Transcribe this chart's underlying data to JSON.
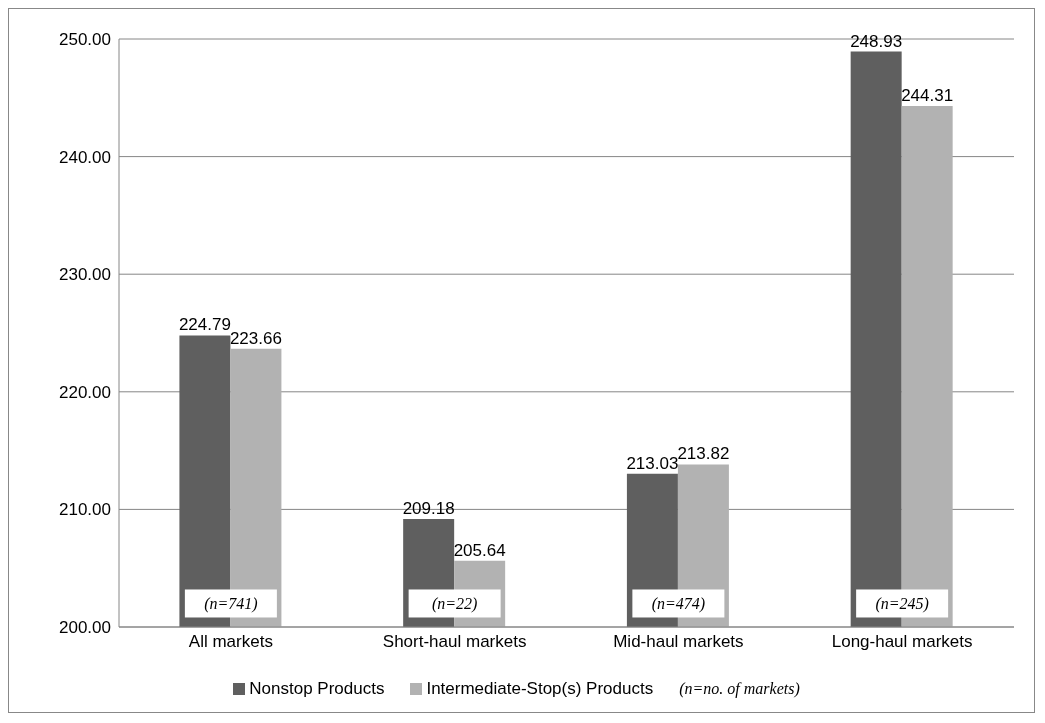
{
  "chart_data": {
    "type": "bar",
    "categories": [
      "All markets",
      "Short-haul markets",
      "Mid-haul markets",
      "Long-haul markets"
    ],
    "series": [
      {
        "name": "Nonstop Products",
        "color": "#5f5f5f",
        "values": [
          224.79,
          209.18,
          213.03,
          248.93
        ]
      },
      {
        "name": "Intermediate-Stop(s) Products",
        "color": "#b2b2b2",
        "values": [
          223.66,
          205.64,
          213.82,
          244.31
        ]
      }
    ],
    "ylim": [
      200,
      250
    ],
    "yticks": [
      {
        "value": 200,
        "label": "200.00"
      },
      {
        "value": 210,
        "label": "210.00"
      },
      {
        "value": 220,
        "label": "220.00"
      },
      {
        "value": 230,
        "label": "230.00"
      },
      {
        "value": 240,
        "label": "240.00"
      },
      {
        "value": 250,
        "label": "250.00"
      }
    ],
    "grid": "y",
    "legend": "bottom",
    "data_labels": true,
    "annotations": [
      {
        "text": "(n=741)",
        "x": "All markets",
        "y": 202
      },
      {
        "text": "(n=22)",
        "x": "Short-haul markets",
        "y": 202
      },
      {
        "text": "(n=474)",
        "x": "Mid-haul markets",
        "y": 202
      },
      {
        "text": "(n=245)",
        "x": "Long-haul markets",
        "y": 202
      },
      "(n=no. of markets)"
    ]
  }
}
